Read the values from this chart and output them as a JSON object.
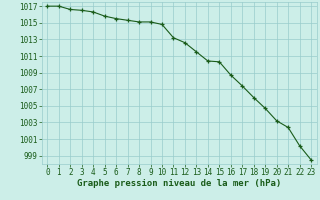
{
  "x": [
    0,
    1,
    2,
    3,
    4,
    5,
    6,
    7,
    8,
    9,
    10,
    11,
    12,
    13,
    14,
    15,
    16,
    17,
    18,
    19,
    20,
    21,
    22,
    23
  ],
  "y": [
    1017.0,
    1017.0,
    1016.6,
    1016.5,
    1016.3,
    1015.8,
    1015.5,
    1015.3,
    1015.1,
    1015.1,
    1014.8,
    1013.2,
    1012.6,
    1011.5,
    1010.4,
    1010.3,
    1008.7,
    1007.4,
    1006.0,
    1004.7,
    1003.2,
    1002.4,
    1000.2,
    998.5
  ],
  "line_color": "#1a5c1a",
  "marker_color": "#1a5c1a",
  "bg_color": "#cceee8",
  "grid_color": "#99cccc",
  "xlabel": "Graphe pression niveau de la mer (hPa)",
  "xlim": [
    -0.5,
    23.5
  ],
  "ylim": [
    998.0,
    1017.5
  ],
  "yticks": [
    999,
    1001,
    1003,
    1005,
    1007,
    1009,
    1011,
    1013,
    1015,
    1017
  ],
  "xticks": [
    0,
    1,
    2,
    3,
    4,
    5,
    6,
    7,
    8,
    9,
    10,
    11,
    12,
    13,
    14,
    15,
    16,
    17,
    18,
    19,
    20,
    21,
    22,
    23
  ],
  "tick_fontsize": 5.5,
  "xlabel_fontsize": 6.5,
  "xlabel_bold": true
}
